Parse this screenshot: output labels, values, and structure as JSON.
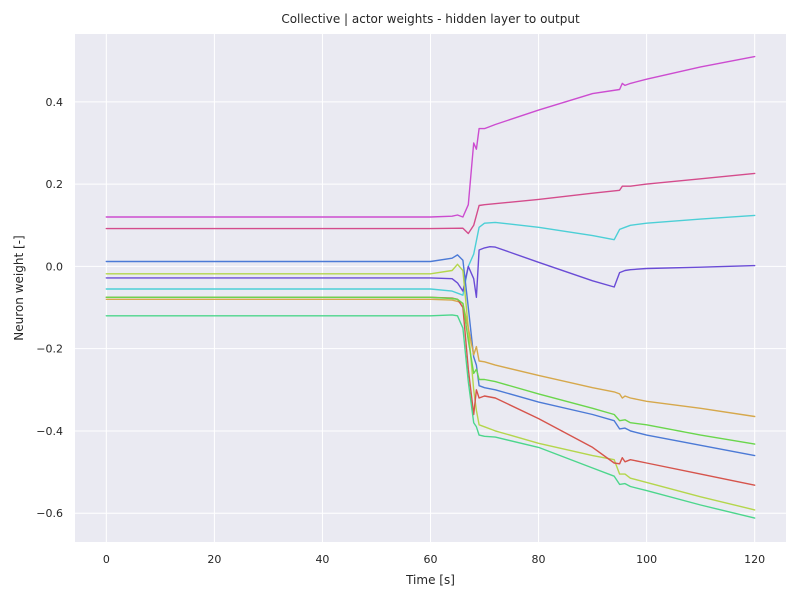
{
  "chart_data": {
    "type": "line",
    "title": "Collective | actor weights - hidden layer to output",
    "xlabel": "Time [s]",
    "ylabel": "Neuron weight [-]",
    "xlim": [
      -5.8,
      125.8
    ],
    "ylim": [
      -0.67,
      0.565
    ],
    "grid": true,
    "xticks": [
      0,
      20,
      40,
      60,
      80,
      100,
      120
    ],
    "yticks": [
      -0.6,
      -0.4,
      -0.2,
      0.0,
      0.2,
      0.4
    ],
    "xtick_labels": [
      "0",
      "20",
      "40",
      "60",
      "80",
      "100",
      "120"
    ],
    "ytick_labels": [
      "−0.6",
      "−0.4",
      "−0.2",
      "0.0",
      "0.2",
      "0.4"
    ],
    "background": "#eaeaf2",
    "series": [
      {
        "name": "magenta",
        "color": "#cc4cd0",
        "x": [
          0,
          60,
          64,
          65,
          66,
          67,
          68,
          68.5,
          69,
          70,
          72,
          80,
          90,
          95,
          95.5,
          96,
          97,
          100,
          110,
          120
        ],
        "y": [
          0.12,
          0.12,
          0.122,
          0.125,
          0.12,
          0.15,
          0.3,
          0.285,
          0.335,
          0.335,
          0.345,
          0.38,
          0.42,
          0.43,
          0.445,
          0.44,
          0.445,
          0.455,
          0.485,
          0.51
        ]
      },
      {
        "name": "pink",
        "color": "#d44c8c",
        "x": [
          0,
          60,
          66,
          67,
          68,
          69,
          70,
          80,
          90,
          95,
          95.5,
          97,
          100,
          110,
          120
        ],
        "y": [
          0.092,
          0.092,
          0.093,
          0.08,
          0.1,
          0.148,
          0.15,
          0.163,
          0.178,
          0.185,
          0.195,
          0.195,
          0.2,
          0.213,
          0.226
        ]
      },
      {
        "name": "cyan",
        "color": "#4ccfd6",
        "x": [
          0,
          60,
          64,
          66,
          67,
          68,
          69,
          70,
          72,
          80,
          90,
          94,
          95,
          96,
          97,
          100,
          110,
          120
        ],
        "y": [
          -0.055,
          -0.055,
          -0.06,
          -0.07,
          0.0,
          0.03,
          0.095,
          0.105,
          0.107,
          0.095,
          0.075,
          0.065,
          0.09,
          0.095,
          0.1,
          0.105,
          0.115,
          0.124
        ]
      },
      {
        "name": "violet",
        "color": "#6a4cd6",
        "x": [
          0,
          60,
          64,
          65,
          66,
          67,
          68,
          68.5,
          69,
          70,
          71,
          72,
          80,
          90,
          94,
          95,
          96,
          97,
          100,
          110,
          120
        ],
        "y": [
          -0.028,
          -0.028,
          -0.03,
          -0.04,
          -0.06,
          0.0,
          -0.03,
          -0.075,
          0.04,
          0.045,
          0.048,
          0.047,
          0.01,
          -0.035,
          -0.05,
          -0.015,
          -0.01,
          -0.008,
          -0.005,
          -0.002,
          0.002
        ]
      },
      {
        "name": "blue",
        "color": "#4c7ad6",
        "x": [
          0,
          60,
          64,
          65,
          66,
          67,
          68,
          68.5,
          69,
          70,
          72,
          80,
          90,
          94,
          95,
          96,
          97,
          100,
          110,
          120
        ],
        "y": [
          0.012,
          0.012,
          0.02,
          0.028,
          0.015,
          -0.1,
          -0.22,
          -0.24,
          -0.29,
          -0.295,
          -0.3,
          -0.33,
          -0.36,
          -0.375,
          -0.395,
          -0.393,
          -0.4,
          -0.41,
          -0.435,
          -0.46
        ]
      },
      {
        "name": "yellow-green",
        "color": "#b4d64c",
        "x": [
          0,
          60,
          64,
          65,
          66,
          67,
          68,
          68.5,
          69,
          70,
          72,
          80,
          90,
          94,
          95,
          96,
          97,
          100,
          110,
          120
        ],
        "y": [
          -0.018,
          -0.018,
          -0.01,
          0.005,
          -0.01,
          -0.15,
          -0.3,
          -0.35,
          -0.385,
          -0.39,
          -0.4,
          -0.43,
          -0.46,
          -0.47,
          -0.505,
          -0.505,
          -0.515,
          -0.525,
          -0.56,
          -0.592
        ]
      },
      {
        "name": "orange",
        "color": "#d6a84c",
        "x": [
          0,
          60,
          64,
          65,
          66,
          67,
          68,
          68.5,
          69,
          70,
          72,
          80,
          90,
          94,
          95,
          95.5,
          96,
          97,
          100,
          110,
          120
        ],
        "y": [
          -0.08,
          -0.08,
          -0.082,
          -0.085,
          -0.09,
          -0.15,
          -0.215,
          -0.195,
          -0.23,
          -0.232,
          -0.24,
          -0.265,
          -0.295,
          -0.305,
          -0.31,
          -0.32,
          -0.315,
          -0.32,
          -0.328,
          -0.345,
          -0.365
        ]
      },
      {
        "name": "red",
        "color": "#d6544c",
        "x": [
          0,
          60,
          64,
          65,
          66,
          67,
          68,
          68.5,
          69,
          70,
          72,
          80,
          90,
          94,
          95,
          95.5,
          96,
          97,
          100,
          110,
          120
        ],
        "y": [
          -0.075,
          -0.075,
          -0.077,
          -0.08,
          -0.1,
          -0.25,
          -0.36,
          -0.3,
          -0.32,
          -0.315,
          -0.32,
          -0.37,
          -0.44,
          -0.478,
          -0.48,
          -0.465,
          -0.475,
          -0.47,
          -0.478,
          -0.505,
          -0.532
        ]
      },
      {
        "name": "green",
        "color": "#6ad64c",
        "x": [
          0,
          60,
          64,
          65,
          66,
          67,
          68,
          68.5,
          69,
          70,
          72,
          80,
          90,
          94,
          95,
          96,
          97,
          100,
          110,
          120
        ],
        "y": [
          -0.075,
          -0.075,
          -0.078,
          -0.08,
          -0.09,
          -0.18,
          -0.26,
          -0.25,
          -0.275,
          -0.275,
          -0.28,
          -0.31,
          -0.345,
          -0.36,
          -0.375,
          -0.373,
          -0.38,
          -0.385,
          -0.41,
          -0.432
        ]
      },
      {
        "name": "sea-green",
        "color": "#4cd68c",
        "x": [
          0,
          60,
          64,
          65,
          66,
          67,
          68,
          68.5,
          69,
          70,
          72,
          80,
          90,
          94,
          95,
          96,
          97,
          100,
          110,
          120
        ],
        "y": [
          -0.12,
          -0.12,
          -0.118,
          -0.12,
          -0.15,
          -0.28,
          -0.38,
          -0.39,
          -0.41,
          -0.413,
          -0.415,
          -0.44,
          -0.49,
          -0.51,
          -0.53,
          -0.528,
          -0.535,
          -0.545,
          -0.58,
          -0.612
        ]
      }
    ]
  }
}
